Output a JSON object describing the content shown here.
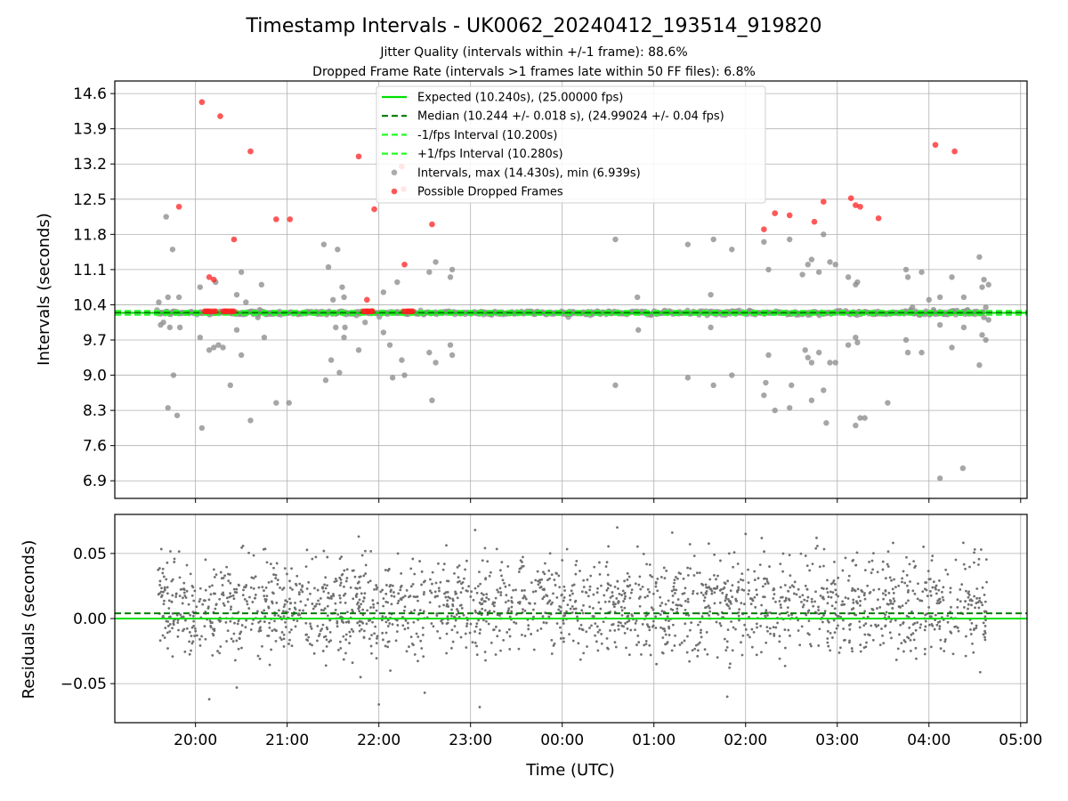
{
  "figure": {
    "title": "Timestamp Intervals - UK0062_20240412_193514_919820",
    "subtitle_1": "Jitter Quality (intervals within +/-1 frame): 88.6%",
    "subtitle_2": "Dropped Frame Rate (intervals >1 frames late within 50 FF files): 6.8%"
  },
  "chart_data": [
    {
      "type": "scatter",
      "panel": "intervals",
      "xlabel": "",
      "ylabel": "Intervals (seconds)",
      "xlim": [
        19.12,
        29.07
      ],
      "ylim": [
        6.55,
        14.85
      ],
      "yticks": [
        6.9,
        7.6,
        8.3,
        9.0,
        9.7,
        10.4,
        11.1,
        11.8,
        12.5,
        13.2,
        13.9,
        14.6
      ],
      "ytick_labels": [
        "6.9",
        "7.6",
        "8.3",
        "9.0",
        "9.7",
        "10.4",
        "11.1",
        "11.8",
        "12.5",
        "13.2",
        "13.9",
        "14.6"
      ],
      "xticks": [
        20,
        21,
        22,
        23,
        24,
        25,
        26,
        27,
        28,
        29
      ],
      "xtick_labels": [
        "20:00",
        "21:00",
        "22:00",
        "23:00",
        "00:00",
        "01:00",
        "02:00",
        "03:00",
        "04:00",
        "05:00"
      ],
      "grid": true,
      "legend_position": "top-center",
      "hlines": [
        {
          "name": "Expected (10.240s), (25.00000 fps)",
          "y": 10.24,
          "color": "#00e000",
          "style": "solid"
        },
        {
          "name": "Median (10.244 +/- 0.018 s), (24.99024 +/- 0.04 fps)",
          "y": 10.244,
          "color": "#007a00",
          "style": "dashed"
        },
        {
          "name": "-1/fps Interval (10.200s)",
          "y": 10.2,
          "color": "#22ff22",
          "style": "dashed"
        },
        {
          "name": "+1/fps Interval (10.280s)",
          "y": 10.28,
          "color": "#22ff22",
          "style": "dashed"
        }
      ],
      "series": [
        {
          "name": "Intervals, max (14.430s), min (6.939s)",
          "color": "#909090",
          "baseline_band": {
            "x_start": 19.58,
            "x_end": 28.6,
            "y_center": 10.24,
            "spread": 0.02
          },
          "points": [
            [
              19.6,
              10.45
            ],
            [
              19.62,
              10.0
            ],
            [
              19.65,
              10.05
            ],
            [
              19.68,
              12.15
            ],
            [
              19.7,
              10.55
            ],
            [
              19.7,
              8.35
            ],
            [
              19.72,
              9.95
            ],
            [
              19.75,
              11.5
            ],
            [
              19.76,
              9.0
            ],
            [
              19.8,
              8.2
            ],
            [
              19.82,
              10.55
            ],
            [
              19.83,
              9.95
            ],
            [
              20.05,
              10.75
            ],
            [
              20.05,
              9.75
            ],
            [
              20.07,
              7.95
            ],
            [
              20.15,
              9.5
            ],
            [
              20.2,
              9.55
            ],
            [
              20.22,
              10.85
            ],
            [
              20.25,
              9.6
            ],
            [
              20.3,
              9.55
            ],
            [
              20.38,
              8.8
            ],
            [
              20.45,
              10.6
            ],
            [
              20.45,
              9.9
            ],
            [
              20.5,
              11.05
            ],
            [
              20.5,
              9.4
            ],
            [
              20.55,
              10.45
            ],
            [
              20.6,
              8.1
            ],
            [
              20.62,
              10.25
            ],
            [
              20.68,
              10.15
            ],
            [
              20.7,
              10.3
            ],
            [
              20.72,
              10.8
            ],
            [
              20.75,
              9.75
            ],
            [
              20.88,
              8.45
            ],
            [
              21.02,
              8.45
            ],
            [
              21.4,
              11.6
            ],
            [
              21.42,
              8.9
            ],
            [
              21.45,
              11.15
            ],
            [
              21.48,
              9.3
            ],
            [
              21.5,
              10.5
            ],
            [
              21.53,
              9.95
            ],
            [
              21.55,
              11.5
            ],
            [
              21.57,
              9.05
            ],
            [
              21.6,
              10.75
            ],
            [
              21.62,
              10.55
            ],
            [
              21.62,
              9.75
            ],
            [
              21.63,
              9.95
            ],
            [
              21.78,
              9.5
            ],
            [
              21.85,
              10.05
            ],
            [
              22.05,
              9.85
            ],
            [
              22.05,
              10.65
            ],
            [
              22.12,
              9.6
            ],
            [
              22.15,
              8.95
            ],
            [
              22.2,
              10.85
            ],
            [
              22.25,
              9.3
            ],
            [
              22.28,
              9.0
            ],
            [
              22.55,
              11.05
            ],
            [
              22.55,
              9.45
            ],
            [
              22.58,
              8.5
            ],
            [
              22.62,
              11.25
            ],
            [
              22.62,
              9.25
            ],
            [
              22.78,
              10.95
            ],
            [
              22.8,
              11.1
            ],
            [
              22.78,
              9.6
            ],
            [
              22.8,
              9.4
            ],
            [
              24.58,
              11.7
            ],
            [
              24.58,
              8.8
            ],
            [
              24.82,
              10.55
            ],
            [
              24.83,
              9.9
            ],
            [
              25.37,
              11.6
            ],
            [
              25.37,
              8.95
            ],
            [
              25.62,
              10.6
            ],
            [
              25.62,
              9.95
            ],
            [
              25.65,
              11.7
            ],
            [
              25.65,
              8.8
            ],
            [
              25.85,
              11.5
            ],
            [
              25.85,
              9.0
            ],
            [
              26.2,
              11.65
            ],
            [
              26.2,
              8.6
            ],
            [
              26.22,
              8.85
            ],
            [
              26.25,
              11.1
            ],
            [
              26.25,
              9.4
            ],
            [
              26.32,
              8.3
            ],
            [
              26.48,
              11.7
            ],
            [
              26.48,
              8.35
            ],
            [
              26.5,
              8.8
            ],
            [
              26.62,
              11.0
            ],
            [
              26.65,
              9.5
            ],
            [
              26.68,
              11.2
            ],
            [
              26.68,
              9.35
            ],
            [
              26.72,
              11.3
            ],
            [
              26.72,
              9.25
            ],
            [
              26.72,
              8.5
            ],
            [
              26.8,
              11.05
            ],
            [
              26.8,
              9.45
            ],
            [
              26.85,
              11.8
            ],
            [
              26.85,
              8.7
            ],
            [
              26.88,
              8.05
            ],
            [
              26.92,
              11.25
            ],
            [
              26.92,
              9.25
            ],
            [
              26.98,
              11.2
            ],
            [
              26.98,
              9.25
            ],
            [
              27.12,
              10.95
            ],
            [
              27.12,
              9.6
            ],
            [
              27.2,
              10.8
            ],
            [
              27.2,
              9.75
            ],
            [
              27.22,
              10.85
            ],
            [
              27.22,
              9.65
            ],
            [
              27.2,
              8.0
            ],
            [
              27.25,
              8.15
            ],
            [
              27.3,
              8.15
            ],
            [
              27.55,
              8.45
            ],
            [
              27.75,
              11.1
            ],
            [
              27.75,
              9.7
            ],
            [
              27.77,
              10.95
            ],
            [
              27.77,
              9.45
            ],
            [
              27.8,
              10.3
            ],
            [
              27.82,
              10.35
            ],
            [
              27.92,
              11.05
            ],
            [
              27.92,
              9.45
            ],
            [
              28.0,
              10.5
            ],
            [
              28.05,
              10.3
            ],
            [
              28.12,
              10.55
            ],
            [
              28.12,
              10.0
            ],
            [
              28.25,
              10.95
            ],
            [
              28.25,
              9.55
            ],
            [
              28.38,
              10.55
            ],
            [
              28.38,
              9.95
            ],
            [
              28.42,
              10.3
            ],
            [
              28.55,
              11.35
            ],
            [
              28.55,
              9.2
            ],
            [
              28.58,
              10.75
            ],
            [
              28.58,
              9.8
            ],
            [
              28.6,
              10.9
            ],
            [
              28.62,
              9.7
            ],
            [
              28.62,
              10.35
            ],
            [
              28.65,
              10.8
            ],
            [
              28.65,
              10.1
            ],
            [
              28.6,
              10.15
            ],
            [
              28.12,
              6.95
            ],
            [
              28.37,
              7.15
            ]
          ]
        },
        {
          "name": "Possible Dropped Frames",
          "color": "#ff2020",
          "points": [
            [
              19.82,
              12.35
            ],
            [
              20.07,
              14.43
            ],
            [
              20.27,
              14.15
            ],
            [
              20.42,
              11.7
            ],
            [
              20.6,
              13.45
            ],
            [
              20.88,
              12.1
            ],
            [
              21.03,
              12.1
            ],
            [
              21.78,
              13.35
            ],
            [
              21.95,
              12.3
            ],
            [
              22.27,
              12.7
            ],
            [
              22.28,
              11.2
            ],
            [
              22.58,
              12.0
            ],
            [
              22.25,
              13.15
            ],
            [
              20.15,
              10.95
            ],
            [
              20.2,
              10.9
            ],
            [
              21.87,
              10.5
            ],
            [
              20.1,
              10.27
            ],
            [
              20.12,
              10.27
            ],
            [
              20.13,
              10.27
            ],
            [
              20.15,
              10.27
            ],
            [
              20.17,
              10.27
            ],
            [
              20.2,
              10.27
            ],
            [
              20.22,
              10.27
            ],
            [
              20.3,
              10.27
            ],
            [
              20.32,
              10.27
            ],
            [
              20.33,
              10.27
            ],
            [
              20.35,
              10.27
            ],
            [
              20.38,
              10.27
            ],
            [
              20.4,
              10.27
            ],
            [
              20.42,
              10.27
            ],
            [
              21.83,
              10.27
            ],
            [
              21.85,
              10.27
            ],
            [
              21.87,
              10.27
            ],
            [
              21.88,
              10.27
            ],
            [
              21.9,
              10.27
            ],
            [
              21.92,
              10.27
            ],
            [
              21.93,
              10.27
            ],
            [
              22.27,
              10.27
            ],
            [
              22.3,
              10.27
            ],
            [
              22.32,
              10.27
            ],
            [
              22.33,
              10.27
            ],
            [
              22.35,
              10.27
            ],
            [
              22.37,
              10.27
            ],
            [
              26.2,
              11.9
            ],
            [
              26.32,
              12.22
            ],
            [
              26.48,
              12.18
            ],
            [
              26.75,
              12.05
            ],
            [
              26.85,
              12.45
            ],
            [
              27.15,
              12.52
            ],
            [
              27.2,
              12.38
            ],
            [
              27.25,
              12.35
            ],
            [
              27.45,
              12.12
            ],
            [
              28.07,
              13.58
            ],
            [
              28.28,
              13.45
            ]
          ]
        }
      ]
    },
    {
      "type": "scatter",
      "panel": "residuals",
      "xlabel": "Time (UTC)",
      "ylabel": "Residuals (seconds)",
      "xlim": [
        19.12,
        29.07
      ],
      "ylim": [
        -0.08,
        0.08
      ],
      "yticks": [
        -0.05,
        0.0,
        0.05
      ],
      "ytick_labels": [
        "−0.05",
        "0.00",
        "0.05"
      ],
      "xticks": [
        20,
        21,
        22,
        23,
        24,
        25,
        26,
        27,
        28,
        29
      ],
      "xtick_labels": [
        "20:00",
        "21:00",
        "22:00",
        "23:00",
        "00:00",
        "01:00",
        "02:00",
        "03:00",
        "04:00",
        "05:00"
      ],
      "grid": true,
      "hlines": [
        {
          "name": "",
          "y": 0.0,
          "color": "#00e000",
          "style": "solid"
        },
        {
          "name": "",
          "y": 0.004,
          "color": "#007a00",
          "style": "dashed"
        }
      ],
      "series": [
        {
          "name": "",
          "color": "#707070",
          "x_range": [
            19.58,
            28.63
          ],
          "bands": [
            {
              "center": 0.02,
              "spread": 0.008,
              "weight": 0.4
            },
            {
              "center": 0.0,
              "spread": 0.008,
              "weight": 0.35
            },
            {
              "center": -0.018,
              "spread": 0.008,
              "weight": 0.15
            },
            {
              "center": 0.04,
              "spread": 0.01,
              "weight": 0.1
            }
          ],
          "count": 2000,
          "outliers": [
            [
              20.15,
              -0.062
            ],
            [
              20.45,
              -0.053
            ],
            [
              21.8,
              -0.045
            ],
            [
              22.0,
              -0.066
            ],
            [
              22.5,
              -0.057
            ],
            [
              23.1,
              -0.068
            ],
            [
              25.8,
              -0.06
            ],
            [
              26.0,
              0.065
            ],
            [
              23.05,
              0.068
            ],
            [
              24.6,
              0.07
            ],
            [
              25.2,
              0.066
            ],
            [
              21.78,
              0.063
            ]
          ]
        }
      ]
    }
  ]
}
